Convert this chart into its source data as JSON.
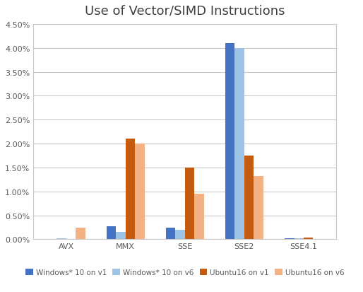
{
  "title": "Use of Vector/SIMD Instructions",
  "categories": [
    "AVX",
    "MMX",
    "SSE",
    "SSE2",
    "SSE4.1"
  ],
  "series": [
    {
      "label": "Windows* 10 on v1",
      "color": "#4472C4",
      "values": [
        0.0,
        0.0028,
        0.0025,
        0.041,
        0.0002
      ]
    },
    {
      "label": "Windows* 10 on v6",
      "color": "#9DC3E6",
      "values": [
        0.0002,
        0.0015,
        0.002,
        0.04,
        0.0002
      ]
    },
    {
      "label": "Ubuntu16 on v1",
      "color": "#C55A11",
      "values": [
        0.0,
        0.021,
        0.015,
        0.0175,
        0.0004
      ]
    },
    {
      "label": "Ubuntu16 on v6",
      "color": "#F4B183",
      "values": [
        0.0025,
        0.02,
        0.0095,
        0.0132,
        0.0
      ]
    }
  ],
  "ylim": [
    0,
    0.045
  ],
  "yticks": [
    0.0,
    0.005,
    0.01,
    0.015,
    0.02,
    0.025,
    0.03,
    0.035,
    0.04,
    0.045
  ],
  "background_color": "#ffffff",
  "grid_color": "#c8c8c8",
  "border_color": "#c8c8c8",
  "title_fontsize": 13,
  "legend_fontsize": 7.5,
  "tick_fontsize": 8,
  "tick_color": "#595959",
  "bar_width": 0.16
}
